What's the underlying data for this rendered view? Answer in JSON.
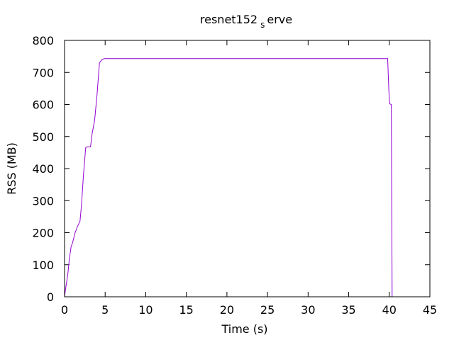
{
  "chart_data": {
    "type": "line",
    "title": {
      "before": "resnet152",
      "subscript": "s",
      "after": "erve"
    },
    "xlabel": "Time (s)",
    "ylabel": "RSS (MB)",
    "xlim": [
      0,
      45
    ],
    "ylim": [
      0,
      800
    ],
    "xticks": [
      0,
      5,
      10,
      15,
      20,
      25,
      30,
      35,
      40,
      45
    ],
    "yticks": [
      0,
      100,
      200,
      300,
      400,
      500,
      600,
      700,
      800
    ],
    "grid": false,
    "legend": "none",
    "series": [
      {
        "color": "#9400d3",
        "points": [
          [
            0.0,
            0
          ],
          [
            0.1,
            20
          ],
          [
            0.4,
            70
          ],
          [
            0.6,
            120
          ],
          [
            0.8,
            155
          ],
          [
            1.0,
            170
          ],
          [
            1.3,
            200
          ],
          [
            1.6,
            220
          ],
          [
            1.9,
            235
          ],
          [
            2.1,
            290
          ],
          [
            2.3,
            370
          ],
          [
            2.6,
            465
          ],
          [
            2.8,
            468
          ],
          [
            3.2,
            468
          ],
          [
            3.4,
            510
          ],
          [
            3.7,
            550
          ],
          [
            4.0,
            630
          ],
          [
            4.3,
            730
          ],
          [
            4.6,
            740
          ],
          [
            4.9,
            743
          ],
          [
            20.0,
            743
          ],
          [
            39.8,
            743
          ],
          [
            39.95,
            640
          ],
          [
            40.05,
            602
          ],
          [
            40.25,
            600
          ],
          [
            40.3,
            300
          ],
          [
            40.35,
            0
          ]
        ]
      }
    ]
  }
}
